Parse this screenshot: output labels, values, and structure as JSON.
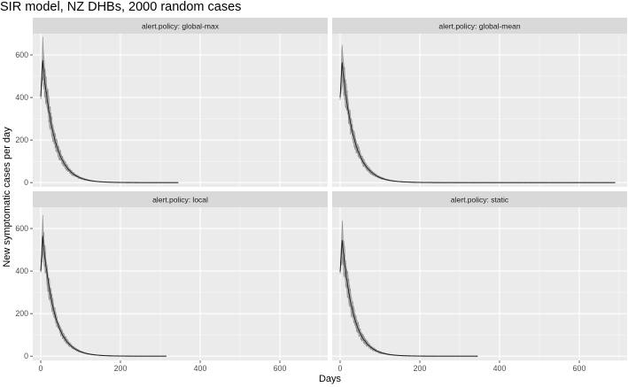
{
  "chart_data": {
    "type": "line",
    "title": "SIR model, NZ DHBs, 2000 random cases",
    "xlabel": "Days",
    "ylabel": "New symptomatic cases per day",
    "facet_variable": "alert.policy",
    "xlim": [
      -20,
      720
    ],
    "ylim": [
      -20,
      700
    ],
    "x_ticks": [
      0,
      200,
      400,
      600
    ],
    "y_ticks": [
      0,
      200,
      400,
      600
    ],
    "grid": true,
    "layout": "2x2 facets",
    "colors": {
      "panel_bg": "#ebebeb",
      "strip_bg": "#d9d9d9",
      "grid_major": "#ffffff",
      "ribbon": "#9a9a9a",
      "line": "#1a1a1a"
    },
    "panels": [
      {
        "strip": "alert.policy: global-max",
        "peak_day": 5,
        "peak_mean": 575,
        "peak_max": 650,
        "peak_min": 500,
        "start_value": 405,
        "decay_days": 29,
        "end_day": 345
      },
      {
        "strip": "alert.policy: global-mean",
        "peak_day": 5,
        "peak_mean": 565,
        "peak_max": 635,
        "peak_min": 495,
        "start_value": 400,
        "decay_days": 30,
        "end_day": 690
      },
      {
        "strip": "alert.policy: local",
        "peak_day": 5,
        "peak_mean": 560,
        "peak_max": 625,
        "peak_min": 490,
        "start_value": 400,
        "decay_days": 29,
        "end_day": 315
      },
      {
        "strip": "alert.policy: static",
        "peak_day": 5,
        "peak_mean": 545,
        "peak_max": 625,
        "peak_min": 480,
        "start_value": 395,
        "decay_days": 28,
        "end_day": 345
      }
    ]
  }
}
